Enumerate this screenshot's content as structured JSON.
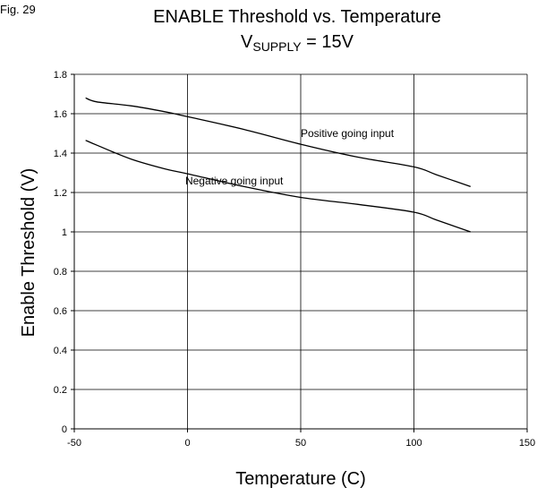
{
  "figure_label": "Fig. 29",
  "title": {
    "line1": "ENABLE Threshold vs. Temperature",
    "line2_prefix": "V",
    "line2_sub": "SUPPLY",
    "line2_suffix": " = 15V"
  },
  "chart_data": {
    "type": "line",
    "title": "ENABLE Threshold vs. Temperature",
    "subtitle": "VSUPPLY = 15V",
    "xlabel": "Temperature (C)",
    "ylabel": "Enable Threshold (V)",
    "xlim": [
      -50,
      150
    ],
    "ylim": [
      0,
      1.8
    ],
    "xticks": [
      -50,
      0,
      50,
      100,
      150
    ],
    "xtick_labels": [
      "-50",
      "0",
      "50",
      "100",
      "150"
    ],
    "yticks": [
      0,
      0.2,
      0.4,
      0.6,
      0.8,
      1.0,
      1.2,
      1.4,
      1.6,
      1.8
    ],
    "ytick_labels": [
      "0",
      "0.2",
      "0.4",
      "0.6",
      "0.8",
      "1",
      "1.2",
      "1.4",
      "1.6",
      "1.8"
    ],
    "grid": true,
    "series": [
      {
        "name": "Positive going input",
        "x": [
          -45,
          -40,
          -25,
          -10,
          0,
          25,
          50,
          75,
          100,
          110,
          125
        ],
        "y": [
          1.68,
          1.66,
          1.64,
          1.61,
          1.585,
          1.52,
          1.445,
          1.38,
          1.33,
          1.29,
          1.23
        ]
      },
      {
        "name": "Negative going input",
        "x": [
          -45,
          -40,
          -25,
          -10,
          0,
          25,
          50,
          75,
          100,
          110,
          125
        ],
        "y": [
          1.465,
          1.44,
          1.37,
          1.32,
          1.295,
          1.23,
          1.175,
          1.14,
          1.1,
          1.06,
          1.0
        ]
      }
    ],
    "annotations": [
      {
        "text": "Positive going input",
        "x": 50,
        "y": 1.5
      },
      {
        "text": "Negative going input",
        "x": -1,
        "y": 1.26
      }
    ],
    "line_color": "#000000",
    "grid_color": "#000000"
  }
}
